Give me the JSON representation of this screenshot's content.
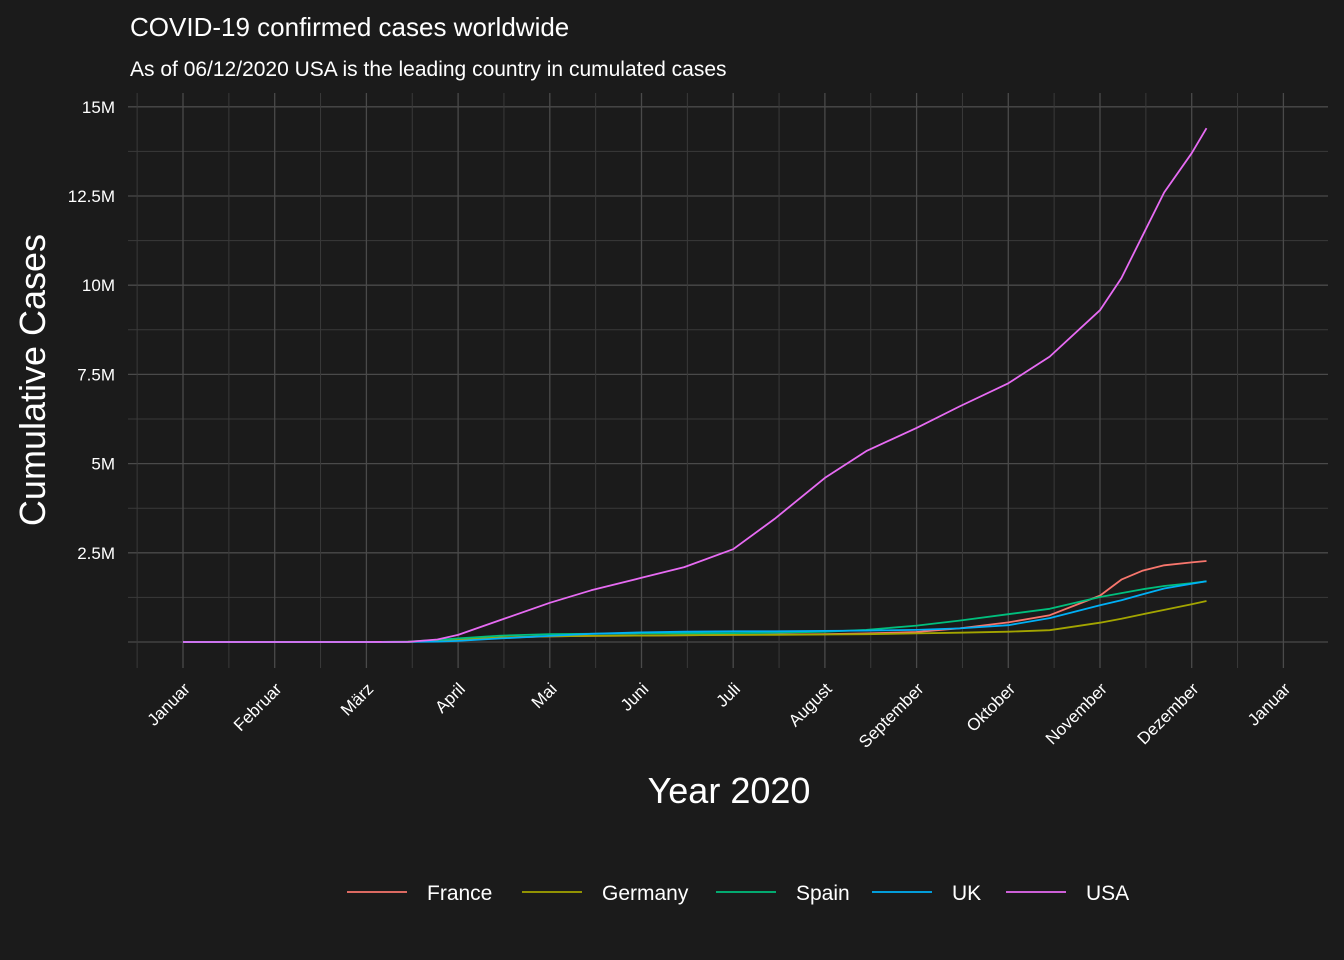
{
  "chart_data": {
    "type": "line",
    "title": "COVID-19 confirmed cases worldwide",
    "subtitle": "As of 06/12/2020 USA is the leading country in cumulated cases",
    "xlabel": "Year 2020",
    "ylabel": "Cumulative Cases",
    "x_ticks": [
      "Januar",
      "Februar",
      "März",
      "April",
      "Mai",
      "Juni",
      "Juli",
      "August",
      "September",
      "Oktober",
      "November",
      "Dezember",
      "Januar"
    ],
    "y_ticks": [
      "15M",
      "12.5M",
      "10M",
      "7.5M",
      "5M",
      "2.5M"
    ],
    "y_tick_values": [
      15,
      12.5,
      10,
      7.5,
      5,
      2.5
    ],
    "ylim": [
      -0.15,
      15.3
    ],
    "y_unit": "million cases",
    "x": [
      "2020-01-01",
      "2020-02-01",
      "2020-03-01",
      "2020-03-15",
      "2020-03-25",
      "2020-04-01",
      "2020-04-15",
      "2020-05-01",
      "2020-05-15",
      "2020-06-01",
      "2020-06-15",
      "2020-07-01",
      "2020-07-15",
      "2020-08-01",
      "2020-08-15",
      "2020-09-01",
      "2020-09-15",
      "2020-10-01",
      "2020-10-15",
      "2020-11-01",
      "2020-11-08",
      "2020-11-15",
      "2020-11-22",
      "2020-12-01",
      "2020-12-06"
    ],
    "grid": true,
    "legend_position": "bottom",
    "series": [
      {
        "name": "France",
        "color": "#f8766d",
        "values": [
          0,
          0,
          0,
          0.005,
          0.025,
          0.06,
          0.12,
          0.16,
          0.17,
          0.18,
          0.19,
          0.2,
          0.21,
          0.22,
          0.24,
          0.28,
          0.38,
          0.55,
          0.75,
          1.3,
          1.75,
          2.0,
          2.15,
          2.23,
          2.27
        ]
      },
      {
        "name": "Germany",
        "color": "#a3a500",
        "values": [
          0,
          0,
          0,
          0.005,
          0.035,
          0.07,
          0.13,
          0.16,
          0.17,
          0.18,
          0.19,
          0.2,
          0.2,
          0.21,
          0.22,
          0.24,
          0.26,
          0.29,
          0.33,
          0.54,
          0.65,
          0.78,
          0.9,
          1.06,
          1.15
        ]
      },
      {
        "name": "Spain",
        "color": "#00bf7d",
        "values": [
          0,
          0,
          0,
          0.008,
          0.06,
          0.1,
          0.18,
          0.22,
          0.23,
          0.24,
          0.245,
          0.25,
          0.26,
          0.29,
          0.34,
          0.46,
          0.6,
          0.78,
          0.93,
          1.26,
          1.37,
          1.48,
          1.57,
          1.65,
          1.7
        ]
      },
      {
        "name": "UK",
        "color": "#00b0f6",
        "values": [
          0,
          0,
          0,
          0.002,
          0.01,
          0.03,
          0.1,
          0.17,
          0.23,
          0.27,
          0.29,
          0.3,
          0.3,
          0.31,
          0.32,
          0.34,
          0.38,
          0.47,
          0.67,
          1.03,
          1.17,
          1.34,
          1.5,
          1.63,
          1.7
        ]
      },
      {
        "name": "USA",
        "color": "#e76bf3",
        "values": [
          0,
          0,
          0,
          0.003,
          0.07,
          0.2,
          0.62,
          1.1,
          1.45,
          1.8,
          2.1,
          2.6,
          3.45,
          4.6,
          5.35,
          6.0,
          6.6,
          7.25,
          8.0,
          9.3,
          10.2,
          11.4,
          12.6,
          13.7,
          14.4
        ]
      }
    ]
  }
}
